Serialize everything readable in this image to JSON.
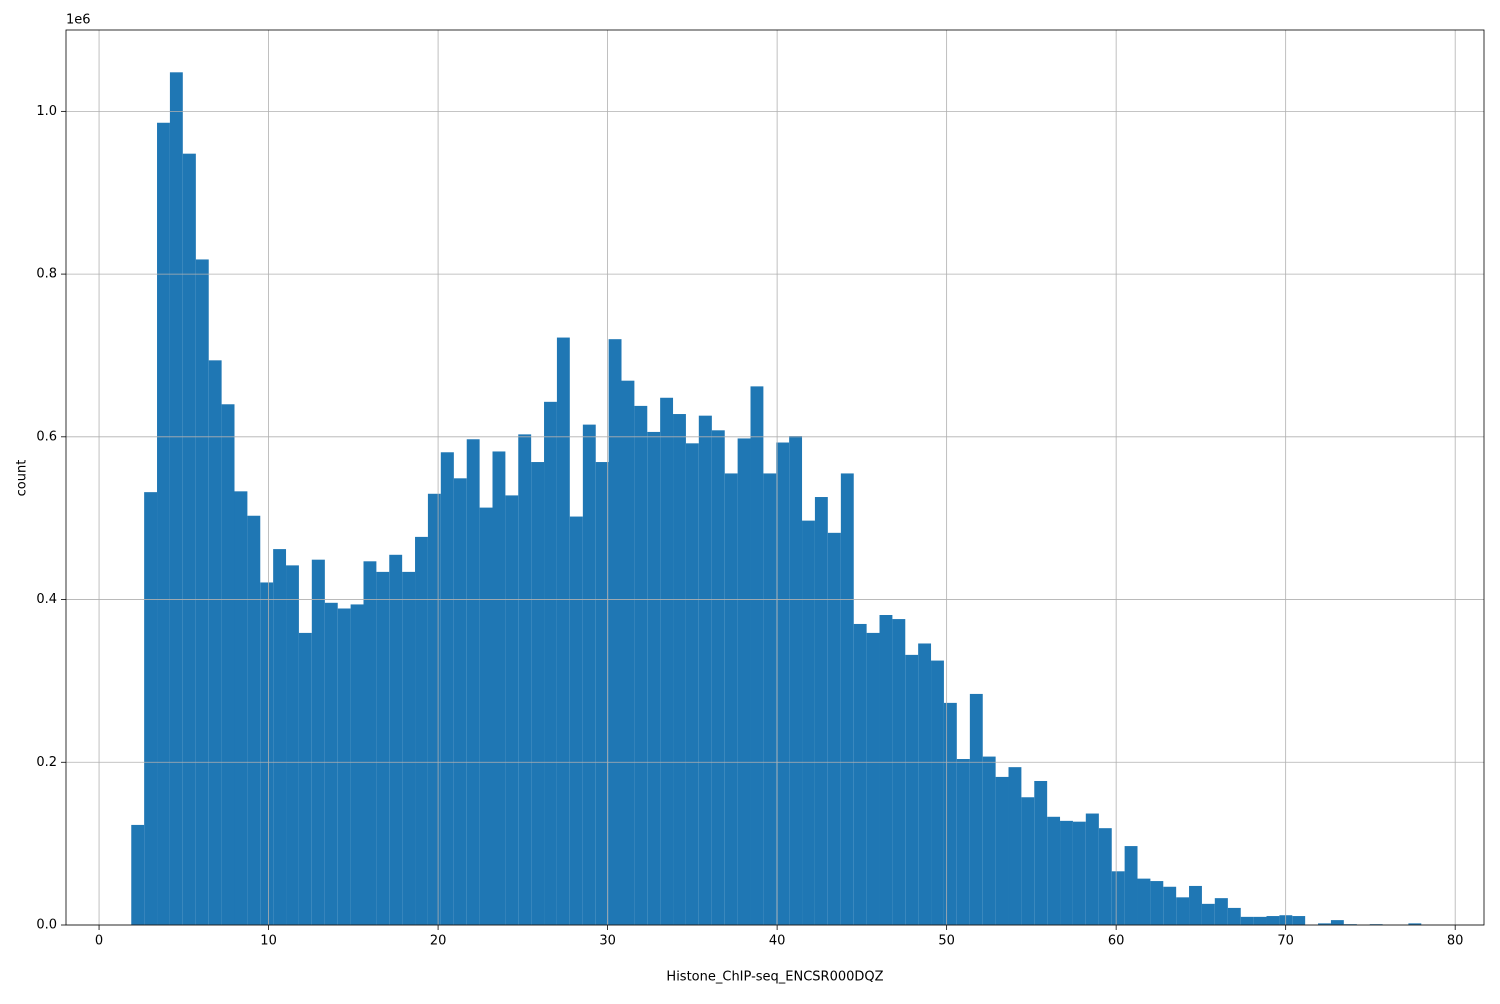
{
  "chart_data": {
    "type": "histogram",
    "xlabel": "Histone_ChIP-seq_ENCSR000DQZ",
    "ylabel": "count",
    "y_offset_label": "1e6",
    "color": "#1f77b4",
    "grid": true,
    "bins": [
      1.9,
      2.66,
      3.42,
      4.18,
      4.94,
      5.71,
      6.47,
      7.23,
      7.99,
      8.75,
      9.51,
      10.27,
      11.03,
      11.79,
      12.55,
      13.32,
      14.08,
      14.84,
      15.6,
      16.36,
      17.12,
      17.88,
      18.64,
      19.4,
      20.16,
      20.93,
      21.69,
      22.45,
      23.21,
      23.97,
      24.73,
      25.49,
      26.25,
      27.01,
      27.77,
      28.54,
      29.3,
      30.06,
      30.82,
      31.58,
      32.34,
      33.1,
      33.86,
      34.62,
      35.38,
      36.15,
      36.91,
      37.67,
      38.43,
      39.19,
      39.95,
      40.71,
      41.47,
      42.23,
      42.99,
      43.76,
      44.52,
      45.28,
      46.04,
      46.8,
      47.56,
      48.32,
      49.08,
      49.84,
      50.6,
      51.37,
      52.13,
      52.89,
      53.65,
      54.41,
      55.17,
      55.93,
      56.69,
      57.45,
      58.21,
      58.98,
      59.74,
      60.5,
      61.26,
      62.02,
      62.78,
      63.54,
      64.3,
      65.06,
      65.82,
      66.59,
      67.35,
      68.11,
      68.87,
      69.63,
      70.39,
      71.15,
      71.91,
      72.67,
      73.43,
      74.2,
      74.96,
      75.72,
      76.48,
      77.24,
      78.0
    ],
    "counts": [
      123000,
      532000,
      986000,
      1048000,
      948000,
      818000,
      694000,
      640000,
      533000,
      503000,
      421000,
      462000,
      442000,
      359000,
      449000,
      396000,
      389000,
      394000,
      447000,
      434000,
      455000,
      434000,
      477000,
      530000,
      581000,
      549000,
      597000,
      513000,
      582000,
      528000,
      603000,
      569000,
      643000,
      722000,
      502000,
      615000,
      569000,
      720000,
      669000,
      638000,
      606000,
      648000,
      628000,
      592000,
      626000,
      608000,
      555000,
      598000,
      662000,
      555000,
      593000,
      601000,
      497000,
      526000,
      482000,
      555000,
      370000,
      359000,
      381000,
      376000,
      332000,
      346000,
      325000,
      273000,
      204000,
      284000,
      207000,
      182000,
      194000,
      157000,
      177000,
      133000,
      128000,
      127000,
      137000,
      119000,
      66000,
      97000,
      57000,
      54000,
      47000,
      34000,
      48000,
      26000,
      33000,
      21000,
      10000,
      10000,
      11000,
      12000,
      11000,
      0,
      2000,
      6000,
      1000,
      0,
      1000,
      0,
      0,
      2000
    ],
    "xlim": [
      -1.95,
      81.7
    ],
    "ylim": [
      0,
      1100000
    ],
    "xticks": [
      0,
      10,
      20,
      30,
      40,
      50,
      60,
      70,
      80
    ],
    "yticks": [
      {
        "value": 0,
        "label": "0.0"
      },
      {
        "value": 200000,
        "label": "0.2"
      },
      {
        "value": 400000,
        "label": "0.4"
      },
      {
        "value": 600000,
        "label": "0.6"
      },
      {
        "value": 800000,
        "label": "0.8"
      },
      {
        "value": 1000000,
        "label": "1.0"
      }
    ]
  }
}
